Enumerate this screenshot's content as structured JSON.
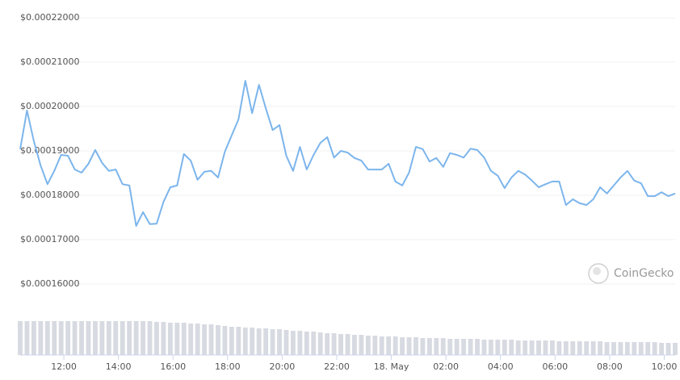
{
  "chart_data": {
    "type": "line",
    "watermark": "CoinGecko",
    "x": [
      10.4,
      10.65,
      10.9,
      11.15,
      11.4,
      11.65,
      11.9,
      12.15,
      12.4,
      12.65,
      12.9,
      13.15,
      13.4,
      13.65,
      13.9,
      14.15,
      14.4,
      14.65,
      14.9,
      15.15,
      15.4,
      15.65,
      15.9,
      16.15,
      16.4,
      16.65,
      16.9,
      17.15,
      17.4,
      17.65,
      17.9,
      18.15,
      18.4,
      18.65,
      18.9,
      19.15,
      19.4,
      19.65,
      19.9,
      20.15,
      20.4,
      20.65,
      20.9,
      21.15,
      21.4,
      21.65,
      21.9,
      22.15,
      22.4,
      22.65,
      22.9,
      23.15,
      23.4,
      23.65,
      23.9,
      24.15,
      24.4,
      24.65,
      24.9,
      25.15,
      25.4,
      25.65,
      25.9,
      26.15,
      26.4,
      26.65,
      26.9,
      27.15,
      27.4,
      27.65,
      27.9,
      28.15,
      28.4,
      28.65,
      28.9,
      29.15,
      29.4,
      29.65,
      29.9,
      30.15,
      30.4,
      30.65,
      30.9,
      31.15,
      31.4,
      31.65,
      31.9,
      32.15,
      32.4,
      32.65,
      32.9,
      33.15,
      33.4,
      33.65,
      33.9,
      34.15,
      34.4
    ],
    "series": [
      {
        "color": "#7cb5ec",
        "values": [
          0.0001904,
          0.0001991,
          0.0001922,
          0.0001867,
          0.0001825,
          0.0001855,
          0.0001891,
          0.0001889,
          0.0001858,
          0.0001851,
          0.0001871,
          0.0001902,
          0.0001873,
          0.0001855,
          0.0001858,
          0.0001825,
          0.0001822,
          0.0001731,
          0.0001762,
          0.0001735,
          0.0001736,
          0.0001785,
          0.0001818,
          0.0001822,
          0.0001893,
          0.0001878,
          0.0001835,
          0.0001853,
          0.0001855,
          0.000184,
          0.0001898,
          0.0001935,
          0.0001971,
          0.0002058,
          0.0001985,
          0.0002049,
          0.0001996,
          0.0001947,
          0.0001958,
          0.0001889,
          0.0001855,
          0.0001909,
          0.0001858,
          0.0001891,
          0.0001918,
          0.0001931,
          0.0001885,
          0.00019,
          0.0001896,
          0.0001884,
          0.0001878,
          0.0001858,
          0.0001858,
          0.0001858,
          0.0001871,
          0.0001831,
          0.0001822,
          0.0001851,
          0.0001909,
          0.0001904,
          0.0001876,
          0.0001884,
          0.0001864,
          0.0001895,
          0.0001891,
          0.0001885,
          0.0001905,
          0.0001902,
          0.0001885,
          0.0001855,
          0.0001844,
          0.0001816,
          0.000184,
          0.0001855,
          0.0001847,
          0.0001833,
          0.0001818,
          0.0001825,
          0.0001831,
          0.0001831,
          0.0001778,
          0.0001791,
          0.0001782,
          0.0001778,
          0.0001791,
          0.0001818,
          0.0001804,
          0.0001822,
          0.000184,
          0.0001855,
          0.0001833,
          0.0001827,
          0.0001798,
          0.0001798,
          0.0001807,
          0.0001798,
          0.0001804
        ]
      },
      {
        "type": "bar",
        "axis": "y2",
        "color": "#d7dae1",
        "values": [
          42,
          42,
          42,
          42,
          42,
          42,
          42,
          42,
          42,
          42,
          42,
          42,
          42,
          42,
          42,
          42,
          42,
          42,
          42,
          42,
          41,
          41,
          40,
          40,
          40,
          39,
          39,
          38,
          38,
          37,
          36,
          35,
          35,
          34,
          34,
          33,
          33,
          32,
          32,
          31,
          30,
          30,
          29,
          29,
          28,
          27,
          27,
          26,
          26,
          25,
          25,
          24,
          24,
          23,
          23,
          23,
          22,
          22,
          22,
          21,
          21,
          21,
          21,
          20,
          20,
          20,
          20,
          20,
          19,
          19,
          19,
          19,
          19,
          18,
          18,
          18,
          18,
          18,
          18,
          17,
          17,
          17,
          17,
          17,
          17,
          17,
          16,
          16,
          16,
          16,
          16,
          16,
          16,
          16,
          15,
          15,
          15
        ]
      }
    ],
    "xlim": [
      10.4,
      34.4
    ],
    "xticks": [
      {
        "value": 12,
        "label": "12:00"
      },
      {
        "value": 14,
        "label": "14:00"
      },
      {
        "value": 16,
        "label": "16:00"
      },
      {
        "value": 18,
        "label": "18:00"
      },
      {
        "value": 20,
        "label": "20:00"
      },
      {
        "value": 22,
        "label": "22:00"
      },
      {
        "value": 24,
        "label": "18. May"
      },
      {
        "value": 26,
        "label": "02:00"
      },
      {
        "value": 28,
        "label": "04:00"
      },
      {
        "value": 30,
        "label": "06:00"
      },
      {
        "value": 32,
        "label": "08:00"
      },
      {
        "value": 34,
        "label": "10:00"
      }
    ],
    "ylim": [
      0.00016,
      0.00022
    ],
    "yticks": [
      {
        "value": 0.00016,
        "label": "$0.00016000"
      },
      {
        "value": 0.00017,
        "label": "$0.00017000"
      },
      {
        "value": 0.00018,
        "label": "$0.00018000"
      },
      {
        "value": 0.00019,
        "label": "$0.00019000"
      },
      {
        "value": 0.0002,
        "label": "$0.00020000"
      },
      {
        "value": 0.00021,
        "label": "$0.00021000"
      },
      {
        "value": 0.00022,
        "label": "$0.00022000"
      }
    ],
    "y2lim": [
      0,
      50
    ],
    "grid": true
  }
}
